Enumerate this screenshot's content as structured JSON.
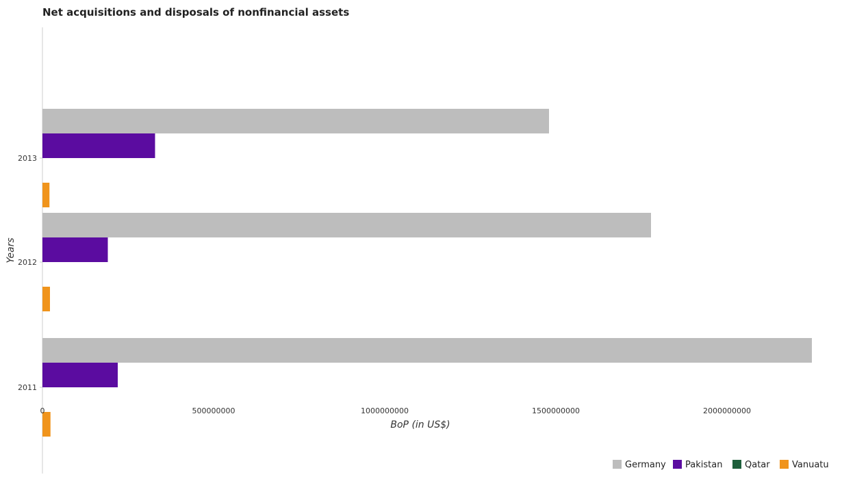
{
  "chart_data": {
    "type": "bar",
    "orientation": "horizontal",
    "title": "Net acquisitions and disposals of nonfinancial assets",
    "xlabel": "BoP (in US$)",
    "ylabel": "Years",
    "categories": [
      "2011",
      "2012",
      "2013"
    ],
    "xlim": [
      0,
      2300000000
    ],
    "xticks": [
      0,
      500000000,
      1000000000,
      1500000000,
      2000000000
    ],
    "xtick_labels": [
      "0",
      "500000000",
      "1000000000",
      "1500000000",
      "2000000000"
    ],
    "grid": false,
    "legend_position": "bottom-right",
    "series": [
      {
        "name": "Germany",
        "color": "#bdbdbd",
        "values": [
          2248000000,
          1778000000,
          1480000000
        ]
      },
      {
        "name": "Pakistan",
        "color": "#5b0ca0",
        "values": [
          220000000,
          191000000,
          329000000
        ]
      },
      {
        "name": "Qatar",
        "color": "#1e5f3b",
        "values": [
          0,
          0,
          0
        ]
      },
      {
        "name": "Vanuatu",
        "color": "#f0941c",
        "values": [
          23500000,
          22000000,
          20500000
        ]
      }
    ]
  }
}
